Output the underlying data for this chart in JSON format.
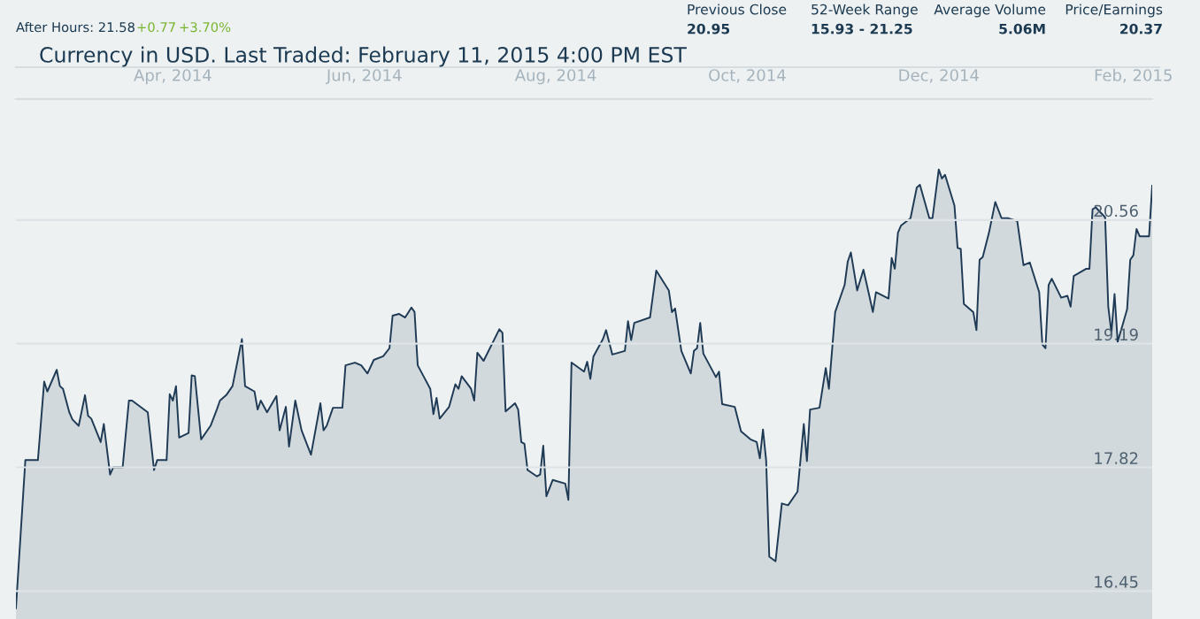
{
  "chart_data": {
    "type": "area",
    "title": "Currency in USD. Last Traded: February 11, 2015 4:00 PM EST",
    "annotations": [
      "After Hours: 21.58",
      "+0.77",
      "+3.70%",
      "Previous Close",
      "20.95",
      "52-Week Range",
      "15.93 - 21.25",
      "Average Volume",
      "5.06M",
      "Price/Earnings",
      "20.37"
    ],
    "x": [
      "2014-02-10",
      "2014-02-13",
      "2014-02-17",
      "2014-02-19",
      "2014-02-20",
      "2014-02-23",
      "2014-02-24",
      "2014-02-25",
      "2014-02-27",
      "2014-02-28",
      "2014-03-02",
      "2014-03-04",
      "2014-03-05",
      "2014-03-06",
      "2014-03-09",
      "2014-03-10",
      "2014-03-12",
      "2014-03-13",
      "2014-03-16",
      "2014-03-18",
      "2014-03-19",
      "2014-03-24",
      "2014-03-26",
      "2014-03-27",
      "2014-03-30",
      "2014-03-31",
      "2014-04-01",
      "2014-04-02",
      "2014-04-03",
      "2014-04-06",
      "2014-04-07",
      "2014-04-08",
      "2014-04-10",
      "2014-04-13",
      "2014-04-15",
      "2014-04-16",
      "2014-04-18",
      "2014-04-20",
      "2014-04-23",
      "2014-04-24",
      "2014-04-27",
      "2014-04-28",
      "2014-04-29",
      "2014-05-01",
      "2014-05-04",
      "2014-05-05",
      "2014-05-07",
      "2014-05-08",
      "2014-05-10",
      "2014-05-12",
      "2014-05-15",
      "2014-05-18",
      "2014-05-19",
      "2014-05-20",
      "2014-05-22",
      "2014-05-25",
      "2014-05-26",
      "2014-05-29",
      "2014-05-31",
      "2014-06-02",
      "2014-06-04",
      "2014-06-07",
      "2014-06-09",
      "2014-06-10",
      "2014-06-12",
      "2014-06-14",
      "2014-06-16",
      "2014-06-17",
      "2014-06-18",
      "2014-06-20",
      "2014-06-22",
      "2014-06-23",
      "2014-06-24",
      "2014-06-25",
      "2014-06-28",
      "2014-06-30",
      "2014-07-01",
      "2014-07-02",
      "2014-07-05",
      "2014-07-06",
      "2014-07-07",
      "2014-07-09",
      "2014-07-14",
      "2014-07-15",
      "2014-07-16",
      "2014-07-19",
      "2014-07-20",
      "2014-07-21",
      "2014-07-22",
      "2014-07-23",
      "2014-07-26",
      "2014-07-27",
      "2014-07-28",
      "2014-07-29",
      "2014-07-31",
      "2014-08-04",
      "2014-08-05",
      "2014-08-06",
      "2014-08-10",
      "2014-08-11",
      "2014-08-12",
      "2014-08-13",
      "2014-08-16",
      "2014-08-17",
      "2014-08-19",
      "2014-08-23",
      "2014-08-24",
      "2014-08-25",
      "2014-08-26",
      "2014-08-31",
      "2014-09-02",
      "2014-09-06",
      "2014-09-07",
      "2014-09-08",
      "2014-09-10",
      "2014-09-13",
      "2014-09-14",
      "2014-09-15",
      "2014-09-16",
      "2014-09-17",
      "2014-09-21",
      "2014-09-22",
      "2014-09-23",
      "2014-09-27",
      "2014-09-29",
      "2014-10-02",
      "2014-10-04",
      "2014-10-05",
      "2014-10-06",
      "2014-10-07",
      "2014-10-08",
      "2014-10-10",
      "2014-10-12",
      "2014-10-14",
      "2014-10-17",
      "2014-10-19",
      "2014-10-20",
      "2014-10-21",
      "2014-10-24",
      "2014-10-26",
      "2014-10-27",
      "2014-10-29",
      "2014-11-01",
      "2014-11-02",
      "2014-11-03",
      "2014-11-05",
      "2014-11-07",
      "2014-11-09",
      "2014-11-10",
      "2014-11-11",
      "2014-11-15",
      "2014-11-16",
      "2014-11-17",
      "2014-11-18",
      "2014-11-19",
      "2014-11-22",
      "2014-11-24",
      "2014-11-25",
      "2014-11-28",
      "2014-11-29",
      "2014-12-01",
      "2014-12-02",
      "2014-12-03",
      "2014-12-06",
      "2014-12-07",
      "2014-12-08",
      "2014-12-09",
      "2014-12-12",
      "2014-12-13",
      "2014-12-14",
      "2014-12-15",
      "2014-12-17",
      "2014-12-19",
      "2014-12-21",
      "2014-12-23",
      "2014-12-26",
      "2014-12-28",
      "2014-12-30",
      "2015-01-02",
      "2015-01-03",
      "2015-01-04",
      "2015-01-05",
      "2015-01-06",
      "2015-01-09",
      "2015-01-11",
      "2015-01-12",
      "2015-01-13",
      "2015-01-17",
      "2015-01-18",
      "2015-01-19",
      "2015-01-20",
      "2015-01-23",
      "2015-01-24",
      "2015-01-25",
      "2015-01-26",
      "2015-01-27",
      "2015-01-30",
      "2015-01-31",
      "2015-02-01",
      "2015-02-02",
      "2015-02-03",
      "2015-02-06",
      "2015-02-07"
    ],
    "series": [
      {
        "color": "#1f3a55",
        "values": [
          16.26,
          17.9,
          17.9,
          18.77,
          18.66,
          18.9,
          18.72,
          18.69,
          18.43,
          18.35,
          18.28,
          18.62,
          18.39,
          18.36,
          18.1,
          18.3,
          17.74,
          17.82,
          17.82,
          18.56,
          18.56,
          18.43,
          17.79,
          17.9,
          17.9,
          18.63,
          18.56,
          18.72,
          18.15,
          18.2,
          18.84,
          18.83,
          18.13,
          18.28,
          18.46,
          18.56,
          18.62,
          18.72,
          19.24,
          18.72,
          18.66,
          18.46,
          18.56,
          18.43,
          18.61,
          18.23,
          18.49,
          18.05,
          18.56,
          18.23,
          17.96,
          18.53,
          18.23,
          18.28,
          18.48,
          18.48,
          18.95,
          18.98,
          18.95,
          18.86,
          19.01,
          19.05,
          19.14,
          19.5,
          19.52,
          19.48,
          19.59,
          19.54,
          18.95,
          18.82,
          18.69,
          18.41,
          18.59,
          18.36,
          18.49,
          18.74,
          18.69,
          18.83,
          18.69,
          18.56,
          19.09,
          19.0,
          19.35,
          19.31,
          18.44,
          18.53,
          18.46,
          18.1,
          18.08,
          17.79,
          17.72,
          17.74,
          18.06,
          17.5,
          17.68,
          17.64,
          17.46,
          18.98,
          18.88,
          18.99,
          18.8,
          19.05,
          19.24,
          19.34,
          19.07,
          19.11,
          19.44,
          19.23,
          19.42,
          19.48,
          20.0,
          19.78,
          19.54,
          19.58,
          19.11,
          18.86,
          19.11,
          19.14,
          19.42,
          19.08,
          18.82,
          18.88,
          18.52,
          18.49,
          18.22,
          18.13,
          18.1,
          17.92,
          18.24,
          17.9,
          16.83,
          16.78,
          17.42,
          17.4,
          17.55,
          18.3,
          17.89,
          18.46,
          18.48,
          18.92,
          18.69,
          19.54,
          19.84,
          20.1,
          20.2,
          19.78,
          20.01,
          19.7,
          19.54,
          19.76,
          19.69,
          20.14,
          20.02,
          20.42,
          20.5,
          20.58,
          20.92,
          20.95,
          20.58,
          20.58,
          21.12,
          21.02,
          21.06,
          20.72,
          20.25,
          20.24,
          19.63,
          19.54,
          19.34,
          20.12,
          20.15,
          20.42,
          20.76,
          20.58,
          20.58,
          20.55,
          20.06,
          20.09,
          19.76,
          19.18,
          19.14,
          19.84,
          19.91,
          19.7,
          19.72,
          19.6,
          19.94,
          20.02,
          20.02,
          20.68,
          20.7,
          20.59,
          19.6,
          19.31,
          19.74,
          19.21,
          19.57,
          20.12,
          20.17,
          20.46,
          20.38,
          20.38,
          20.94
        ]
      }
    ],
    "xlim": [
      "2014-02-10",
      "2015-02-07"
    ],
    "xticks": [
      {
        "value": "2014-04-01",
        "label": "Apr, 2014"
      },
      {
        "value": "2014-06-01",
        "label": "Jun, 2014"
      },
      {
        "value": "2014-08-01",
        "label": "Aug, 2014"
      },
      {
        "value": "2014-10-01",
        "label": "Oct, 2014"
      },
      {
        "value": "2014-12-01",
        "label": "Dec, 2014"
      },
      {
        "value": "2015-02-01",
        "label": "Feb, 2015"
      }
    ],
    "ylim": [
      16.14,
      21.9
    ],
    "yticks": [
      16.45,
      17.82,
      19.19,
      20.56
    ],
    "grid": "y"
  }
}
